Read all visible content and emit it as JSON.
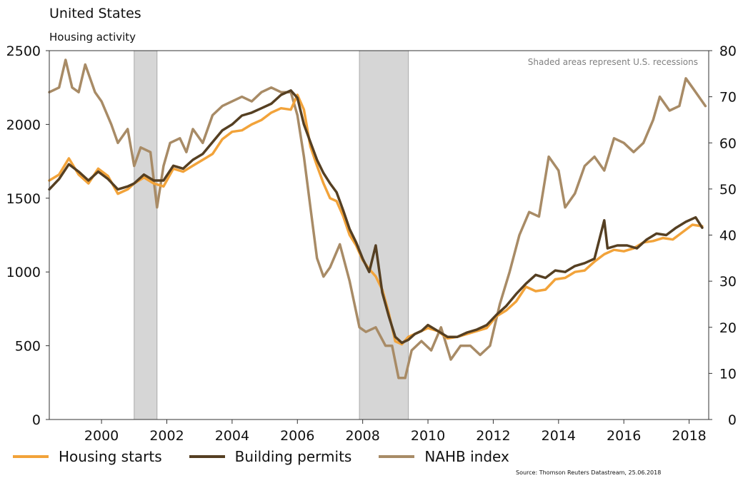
{
  "chart_data": {
    "type": "line",
    "title": "United States",
    "subtitle": "Housing activity",
    "annotation": "Shaded areas represent U.S. recessions",
    "source": "Source: Thomson Reuters Datastream, 25.06.2018",
    "x_ticks": [
      "2000",
      "2002",
      "2004",
      "2006",
      "2008",
      "2010",
      "2012",
      "2014",
      "2016",
      "2018"
    ],
    "y_left_ticks": [
      "0",
      "500",
      "1000",
      "1500",
      "2000",
      "2500"
    ],
    "y_right_ticks": [
      "0",
      "10",
      "20",
      "30",
      "40",
      "50",
      "60",
      "70",
      "80"
    ],
    "xlim": [
      1998.4,
      2018.6
    ],
    "ylim_left": [
      0,
      2500
    ],
    "ylim_right": [
      0,
      80
    ],
    "recessions": [
      [
        2001.0,
        2001.7
      ],
      [
        2007.9,
        2009.4
      ]
    ],
    "grid": false,
    "legend_position": "bottom",
    "series": [
      {
        "name": "Housing starts",
        "axis": "left",
        "color": "#f2a33a",
        "points": [
          [
            1998.4,
            1620
          ],
          [
            1998.7,
            1660
          ],
          [
            1999.0,
            1770
          ],
          [
            1999.3,
            1660
          ],
          [
            1999.6,
            1600
          ],
          [
            1999.9,
            1700
          ],
          [
            2000.2,
            1650
          ],
          [
            2000.5,
            1530
          ],
          [
            2000.8,
            1560
          ],
          [
            2001.0,
            1600
          ],
          [
            2001.3,
            1640
          ],
          [
            2001.6,
            1600
          ],
          [
            2001.9,
            1580
          ],
          [
            2002.2,
            1700
          ],
          [
            2002.5,
            1680
          ],
          [
            2002.8,
            1720
          ],
          [
            2003.1,
            1760
          ],
          [
            2003.4,
            1800
          ],
          [
            2003.7,
            1900
          ],
          [
            2004.0,
            1950
          ],
          [
            2004.3,
            1960
          ],
          [
            2004.6,
            2000
          ],
          [
            2004.9,
            2030
          ],
          [
            2005.2,
            2080
          ],
          [
            2005.5,
            2110
          ],
          [
            2005.8,
            2100
          ],
          [
            2006.0,
            2200
          ],
          [
            2006.2,
            2100
          ],
          [
            2006.4,
            1850
          ],
          [
            2006.6,
            1720
          ],
          [
            2006.8,
            1600
          ],
          [
            2007.0,
            1500
          ],
          [
            2007.2,
            1480
          ],
          [
            2007.4,
            1380
          ],
          [
            2007.6,
            1250
          ],
          [
            2007.8,
            1180
          ],
          [
            2008.0,
            1080
          ],
          [
            2008.2,
            1020
          ],
          [
            2008.4,
            970
          ],
          [
            2008.6,
            880
          ],
          [
            2008.8,
            720
          ],
          [
            2009.0,
            530
          ],
          [
            2009.2,
            510
          ],
          [
            2009.4,
            560
          ],
          [
            2009.6,
            580
          ],
          [
            2009.8,
            600
          ],
          [
            2010.0,
            620
          ],
          [
            2010.3,
            600
          ],
          [
            2010.6,
            550
          ],
          [
            2010.9,
            560
          ],
          [
            2011.2,
            580
          ],
          [
            2011.5,
            600
          ],
          [
            2011.8,
            620
          ],
          [
            2012.1,
            700
          ],
          [
            2012.4,
            740
          ],
          [
            2012.7,
            800
          ],
          [
            2013.0,
            900
          ],
          [
            2013.3,
            870
          ],
          [
            2013.6,
            880
          ],
          [
            2013.9,
            950
          ],
          [
            2014.2,
            960
          ],
          [
            2014.5,
            1000
          ],
          [
            2014.8,
            1010
          ],
          [
            2015.1,
            1070
          ],
          [
            2015.4,
            1120
          ],
          [
            2015.7,
            1150
          ],
          [
            2016.0,
            1140
          ],
          [
            2016.3,
            1160
          ],
          [
            2016.6,
            1200
          ],
          [
            2016.9,
            1210
          ],
          [
            2017.2,
            1230
          ],
          [
            2017.5,
            1220
          ],
          [
            2017.8,
            1270
          ],
          [
            2018.1,
            1320
          ],
          [
            2018.4,
            1310
          ]
        ]
      },
      {
        "name": "Building permits",
        "axis": "left",
        "color": "#553f22",
        "points": [
          [
            1998.4,
            1560
          ],
          [
            1998.7,
            1630
          ],
          [
            1999.0,
            1730
          ],
          [
            1999.3,
            1680
          ],
          [
            1999.6,
            1620
          ],
          [
            1999.9,
            1680
          ],
          [
            2000.2,
            1630
          ],
          [
            2000.5,
            1560
          ],
          [
            2000.8,
            1580
          ],
          [
            2001.0,
            1600
          ],
          [
            2001.3,
            1660
          ],
          [
            2001.6,
            1620
          ],
          [
            2001.9,
            1620
          ],
          [
            2002.2,
            1720
          ],
          [
            2002.5,
            1700
          ],
          [
            2002.8,
            1760
          ],
          [
            2003.1,
            1800
          ],
          [
            2003.4,
            1880
          ],
          [
            2003.7,
            1960
          ],
          [
            2004.0,
            2000
          ],
          [
            2004.3,
            2060
          ],
          [
            2004.6,
            2080
          ],
          [
            2004.9,
            2110
          ],
          [
            2005.2,
            2140
          ],
          [
            2005.5,
            2200
          ],
          [
            2005.8,
            2230
          ],
          [
            2006.0,
            2180
          ],
          [
            2006.2,
            2000
          ],
          [
            2006.4,
            1880
          ],
          [
            2006.6,
            1760
          ],
          [
            2006.8,
            1670
          ],
          [
            2007.0,
            1600
          ],
          [
            2007.2,
            1540
          ],
          [
            2007.4,
            1420
          ],
          [
            2007.6,
            1290
          ],
          [
            2007.8,
            1200
          ],
          [
            2008.0,
            1090
          ],
          [
            2008.2,
            1000
          ],
          [
            2008.4,
            1180
          ],
          [
            2008.6,
            860
          ],
          [
            2008.8,
            700
          ],
          [
            2009.0,
            560
          ],
          [
            2009.2,
            520
          ],
          [
            2009.4,
            540
          ],
          [
            2009.6,
            580
          ],
          [
            2009.8,
            600
          ],
          [
            2010.0,
            640
          ],
          [
            2010.3,
            600
          ],
          [
            2010.6,
            560
          ],
          [
            2010.9,
            560
          ],
          [
            2011.2,
            590
          ],
          [
            2011.5,
            610
          ],
          [
            2011.8,
            640
          ],
          [
            2012.1,
            710
          ],
          [
            2012.4,
            770
          ],
          [
            2012.7,
            850
          ],
          [
            2013.0,
            920
          ],
          [
            2013.3,
            980
          ],
          [
            2013.6,
            960
          ],
          [
            2013.9,
            1010
          ],
          [
            2014.2,
            1000
          ],
          [
            2014.5,
            1040
          ],
          [
            2014.8,
            1060
          ],
          [
            2015.1,
            1090
          ],
          [
            2015.4,
            1350
          ],
          [
            2015.5,
            1160
          ],
          [
            2015.8,
            1180
          ],
          [
            2016.1,
            1180
          ],
          [
            2016.4,
            1160
          ],
          [
            2016.7,
            1220
          ],
          [
            2017.0,
            1260
          ],
          [
            2017.3,
            1250
          ],
          [
            2017.6,
            1300
          ],
          [
            2017.9,
            1340
          ],
          [
            2018.2,
            1370
          ],
          [
            2018.4,
            1300
          ]
        ]
      },
      {
        "name": "NAHB index",
        "axis": "right",
        "color": "#a88b66",
        "points": [
          [
            1998.4,
            71
          ],
          [
            1998.7,
            72
          ],
          [
            1998.9,
            78
          ],
          [
            1999.1,
            72
          ],
          [
            1999.3,
            71
          ],
          [
            1999.5,
            77
          ],
          [
            1999.8,
            71
          ],
          [
            2000.0,
            69
          ],
          [
            2000.3,
            64
          ],
          [
            2000.5,
            60
          ],
          [
            2000.8,
            63
          ],
          [
            2001.0,
            55
          ],
          [
            2001.2,
            59
          ],
          [
            2001.5,
            58
          ],
          [
            2001.7,
            46
          ],
          [
            2001.9,
            55
          ],
          [
            2002.1,
            60
          ],
          [
            2002.4,
            61
          ],
          [
            2002.6,
            58
          ],
          [
            2002.8,
            63
          ],
          [
            2003.1,
            60
          ],
          [
            2003.4,
            66
          ],
          [
            2003.7,
            68
          ],
          [
            2004.0,
            69
          ],
          [
            2004.3,
            70
          ],
          [
            2004.6,
            69
          ],
          [
            2004.9,
            71
          ],
          [
            2005.2,
            72
          ],
          [
            2005.5,
            71
          ],
          [
            2005.8,
            71
          ],
          [
            2006.0,
            66
          ],
          [
            2006.2,
            57
          ],
          [
            2006.4,
            46
          ],
          [
            2006.6,
            35
          ],
          [
            2006.8,
            31
          ],
          [
            2007.0,
            33
          ],
          [
            2007.3,
            38
          ],
          [
            2007.6,
            30
          ],
          [
            2007.9,
            20
          ],
          [
            2008.1,
            19
          ],
          [
            2008.4,
            20
          ],
          [
            2008.7,
            16
          ],
          [
            2008.9,
            16
          ],
          [
            2009.1,
            9
          ],
          [
            2009.3,
            9
          ],
          [
            2009.5,
            15
          ],
          [
            2009.8,
            17
          ],
          [
            2010.1,
            15
          ],
          [
            2010.4,
            20
          ],
          [
            2010.7,
            13
          ],
          [
            2011.0,
            16
          ],
          [
            2011.3,
            16
          ],
          [
            2011.6,
            14
          ],
          [
            2011.9,
            16
          ],
          [
            2012.2,
            25
          ],
          [
            2012.5,
            32
          ],
          [
            2012.8,
            40
          ],
          [
            2013.1,
            45
          ],
          [
            2013.4,
            44
          ],
          [
            2013.7,
            57
          ],
          [
            2014.0,
            54
          ],
          [
            2014.2,
            46
          ],
          [
            2014.5,
            49
          ],
          [
            2014.8,
            55
          ],
          [
            2015.1,
            57
          ],
          [
            2015.4,
            54
          ],
          [
            2015.7,
            61
          ],
          [
            2016.0,
            60
          ],
          [
            2016.3,
            58
          ],
          [
            2016.6,
            60
          ],
          [
            2016.9,
            65
          ],
          [
            2017.1,
            70
          ],
          [
            2017.4,
            67
          ],
          [
            2017.7,
            68
          ],
          [
            2017.9,
            74
          ],
          [
            2018.1,
            72
          ],
          [
            2018.3,
            70
          ],
          [
            2018.5,
            68
          ]
        ]
      }
    ]
  }
}
